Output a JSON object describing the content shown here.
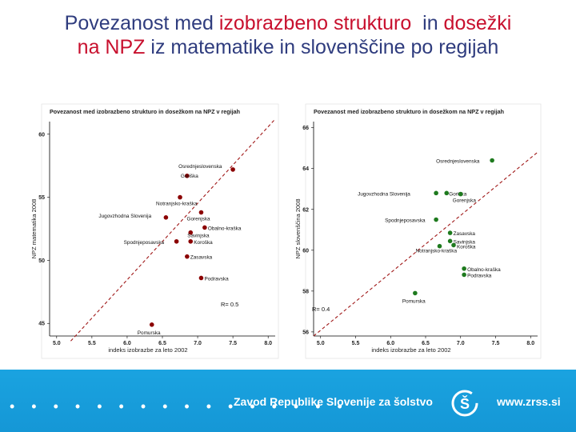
{
  "slide": {
    "title_line1_a": "Povezanost med ",
    "title_line1_b": "izobrazbeno strukturo",
    "title_line1_c": "  in ",
    "title_line1_d": "dosežki",
    "title_line2_a": "na NPZ",
    "title_line2_b": " iz matematike in slovenščine po regijah"
  },
  "colors": {
    "title": "#2f3c7e",
    "highlight": "#c8102e",
    "footer": "#1aa3e0",
    "math_points": "#8b0000",
    "slo_points": "#1e7a1e"
  },
  "chart_data": [
    {
      "type": "scatter",
      "title": "Povezanost med izobrazbeno strukturo in dosežkom na NPZ v regijah",
      "xlabel": "indeks izobrazbe za leto 2002",
      "ylabel": "NPZ matematika 2008",
      "xlim": [
        4.9,
        8.1
      ],
      "ylim": [
        44,
        61
      ],
      "xticks": [
        "5.0",
        "5.5",
        "6.0",
        "6.5",
        "7.0",
        "7.5",
        "8.0"
      ],
      "yticks": [
        "45",
        "50",
        "55",
        "60"
      ],
      "annotation": "R= 0.5",
      "trend": [
        [
          5.2,
          43.6
        ],
        [
          8.1,
          61.2
        ]
      ],
      "points": [
        {
          "label": "Osrednjeslovenska",
          "x": 7.5,
          "y": 57.2
        },
        {
          "label": "Goriška",
          "x": 6.85,
          "y": 56.7
        },
        {
          "label": "Notranjsko-kraška",
          "x": 6.75,
          "y": 55.0
        },
        {
          "label": "Gorenjska",
          "x": 7.05,
          "y": 53.8
        },
        {
          "label": "Jugovzhodna Slovenija",
          "x": 6.55,
          "y": 53.4
        },
        {
          "label": "Obalno-kraška",
          "x": 7.1,
          "y": 52.6
        },
        {
          "label": "Savinjska",
          "x": 6.9,
          "y": 52.2
        },
        {
          "label": "Spodnjeposavska",
          "x": 6.7,
          "y": 51.5
        },
        {
          "label": "Koroška",
          "x": 6.9,
          "y": 51.5
        },
        {
          "label": "Zasavska",
          "x": 6.85,
          "y": 50.3
        },
        {
          "label": "Podravska",
          "x": 7.05,
          "y": 48.6
        },
        {
          "label": "Pomurska",
          "x": 6.35,
          "y": 44.9
        }
      ]
    },
    {
      "type": "scatter",
      "title": "Povezanost med izobrazbeno strukturo in dosežkom na NPZ v regijah",
      "xlabel": "indeks izobrazbe za leto 2002",
      "ylabel": "NPZ slovenščina 2008",
      "xlim": [
        4.9,
        8.1
      ],
      "ylim": [
        55.8,
        66.3
      ],
      "xticks": [
        "5.0",
        "5.5",
        "6.0",
        "6.5",
        "7.0",
        "7.5",
        "8.0"
      ],
      "yticks": [
        "56",
        "58",
        "60",
        "62",
        "64",
        "66"
      ],
      "annotation": "R= 0.4",
      "trend": [
        [
          4.9,
          55.8
        ],
        [
          8.1,
          64.8
        ]
      ],
      "points": [
        {
          "label": "Osrednjeslovenska",
          "x": 7.45,
          "y": 64.4
        },
        {
          "label": "Jugovzhodna Slovenija",
          "x": 6.65,
          "y": 62.8
        },
        {
          "label": "Goriška",
          "x": 6.8,
          "y": 62.8
        },
        {
          "label": "Gorenjska",
          "x": 7.0,
          "y": 62.75
        },
        {
          "label": "Spodnjeposavska",
          "x": 6.65,
          "y": 61.5
        },
        {
          "label": "Zasavska",
          "x": 6.85,
          "y": 60.85
        },
        {
          "label": "Savinjska",
          "x": 6.85,
          "y": 60.45
        },
        {
          "label": "Koroška",
          "x": 6.9,
          "y": 60.25
        },
        {
          "label": "Notranjsko-kraška",
          "x": 6.7,
          "y": 60.2
        },
        {
          "label": "Obalno-kraška",
          "x": 7.05,
          "y": 59.1
        },
        {
          "label": "Podravska",
          "x": 7.05,
          "y": 58.8
        },
        {
          "label": "Pomurska",
          "x": 6.35,
          "y": 57.9
        }
      ]
    }
  ],
  "footer": {
    "dots": "• • • • • • • • • • • • • • • •",
    "org_name": "Zavod Republike Slovenije za šolstvo",
    "logo_letter": "Š",
    "url": "www.zrss.si"
  }
}
